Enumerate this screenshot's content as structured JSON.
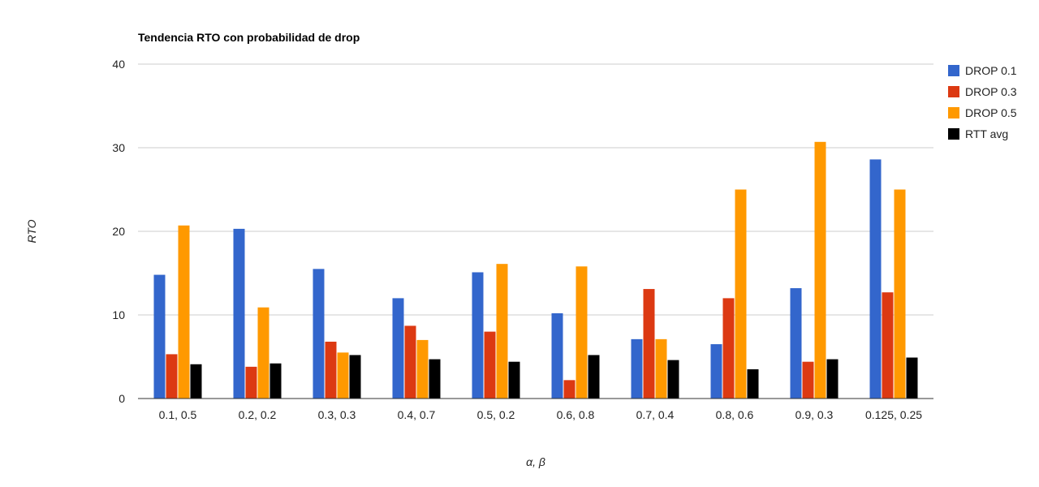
{
  "chart_data": {
    "type": "bar",
    "title": "Tendencia RTO con probabilidad de drop",
    "xlabel": "α, β",
    "ylabel": "RTO",
    "ylim": [
      0,
      40
    ],
    "yticks": [
      0,
      10,
      20,
      30,
      40
    ],
    "grid": true,
    "legend_position": "right",
    "categories": [
      "0.1, 0.5",
      "0.2, 0.2",
      "0.3, 0.3",
      "0.4, 0.7",
      "0.5, 0.2",
      "0.6, 0.8",
      "0.7, 0.4",
      "0.8, 0.6",
      "0.9, 0.3",
      "0.125, 0.25"
    ],
    "series": [
      {
        "name": "DROP 0.1",
        "color": "#3366cc",
        "values": [
          14.8,
          20.3,
          15.5,
          12.0,
          15.1,
          10.2,
          7.1,
          6.5,
          13.2,
          28.6
        ]
      },
      {
        "name": "DROP 0.3",
        "color": "#dc3912",
        "values": [
          5.3,
          3.8,
          6.8,
          8.7,
          8.0,
          2.2,
          13.1,
          12.0,
          4.4,
          12.7
        ]
      },
      {
        "name": "DROP 0.5",
        "color": "#ff9900",
        "values": [
          20.7,
          10.9,
          5.5,
          7.0,
          16.1,
          15.8,
          7.1,
          25.0,
          30.7,
          25.0
        ]
      },
      {
        "name": "RTT avg",
        "color": "#000000",
        "values": [
          4.1,
          4.2,
          5.2,
          4.7,
          4.4,
          5.2,
          4.6,
          3.5,
          4.7,
          4.9
        ]
      }
    ]
  }
}
